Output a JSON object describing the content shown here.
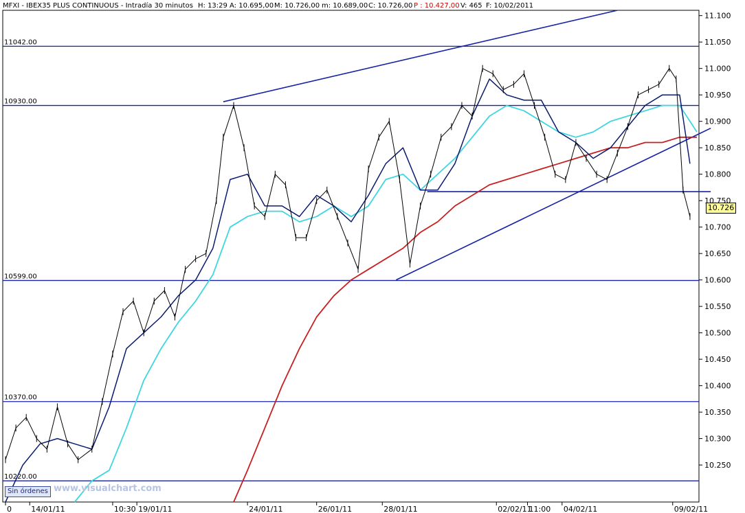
{
  "header": {
    "prefix": "MFXI - IBEX35 PLUS CONTINUOUS - Intradía 30 minutos",
    "high": "H: 13:29",
    "a": "A: 10.695,00",
    "m": "M: 10.726,00",
    "lo": "m: 10.689,00",
    "c": "C: 10.726,00",
    "p": "P : 10.427,00",
    "v": "V: 465",
    "f": "F: 10/02/2011"
  },
  "colors": {
    "price": "#000000",
    "ma_short": "#0a1a6e",
    "ma_medium": "#3fd6e0",
    "ma_long": "#c81e1e",
    "lines": "#1522a6",
    "p_text": "#cc0000"
  },
  "widgets": {
    "sin_ordenes": "Sin órdenes",
    "watermark": "www.visualchart.com",
    "last_price": "10.726"
  },
  "chart_data": {
    "type": "line",
    "ylim": [
      10180,
      11110
    ],
    "yticks": [
      "11.100",
      "11.050",
      "11.000",
      "10.950",
      "10.900",
      "10.850",
      "10.800",
      "10.750",
      "10.700",
      "10.650",
      "10.600",
      "10.550",
      "10.500",
      "10.450",
      "10.400",
      "10.350",
      "10.300",
      "10.250"
    ],
    "x_labels": [
      {
        "x": 0,
        "label": "0"
      },
      {
        "x": 7,
        "label": "14/01/11"
      },
      {
        "x": 31,
        "label": "10:30"
      },
      {
        "x": 38,
        "label": "19/01/11"
      },
      {
        "x": 70,
        "label": "24/01/11"
      },
      {
        "x": 90,
        "label": "26/01/11"
      },
      {
        "x": 109,
        "label": "28/01/11"
      },
      {
        "x": 142,
        "label": "02/02/11"
      },
      {
        "x": 151,
        "label": "11:00"
      },
      {
        "x": 161,
        "label": "04/02/11"
      },
      {
        "x": 193,
        "label": "09/02/11"
      }
    ],
    "levels": [
      {
        "value": 11042,
        "label": "11042.00"
      },
      {
        "value": 10930,
        "label": "10930.00"
      },
      {
        "value": 10599,
        "label": "10599.00"
      },
      {
        "value": 10370,
        "label": "10370.00"
      },
      {
        "value": 10220,
        "label": "10220.00"
      }
    ],
    "segments": [
      {
        "x": [
          122,
          204
        ],
        "y": [
          10767,
          10767
        ]
      },
      {
        "x": [
          63,
          177
        ],
        "y": [
          10937,
          11110
        ]
      },
      {
        "x": [
          113,
          204
        ],
        "y": [
          10600,
          10887
        ]
      }
    ],
    "price": {
      "x": [
        0,
        3,
        6,
        9,
        12,
        15,
        18,
        21,
        25,
        28,
        31,
        34,
        37,
        40,
        43,
        46,
        49,
        52,
        55,
        58,
        61,
        63,
        66,
        69,
        72,
        75,
        78,
        81,
        84,
        87,
        90,
        93,
        96,
        99,
        102,
        105,
        108,
        111,
        114,
        117,
        120,
        123,
        126,
        129,
        132,
        135,
        138,
        141,
        144,
        147,
        150,
        153,
        156,
        159,
        162,
        165,
        168,
        171,
        174,
        177,
        180,
        183,
        186,
        189,
        192,
        194,
        196,
        198
      ],
      "y": [
        10260,
        10320,
        10340,
        10300,
        10280,
        10360,
        10290,
        10260,
        10280,
        10370,
        10460,
        10540,
        10560,
        10500,
        10560,
        10580,
        10530,
        10620,
        10640,
        10650,
        10750,
        10870,
        10930,
        10850,
        10740,
        10720,
        10800,
        10780,
        10680,
        10680,
        10750,
        10770,
        10720,
        10670,
        10620,
        10810,
        10870,
        10900,
        10790,
        10630,
        10740,
        10800,
        10870,
        10890,
        10930,
        10910,
        11000,
        10990,
        10960,
        10970,
        10990,
        10930,
        10870,
        10800,
        10790,
        10860,
        10830,
        10800,
        10790,
        10840,
        10890,
        10950,
        10960,
        10970,
        11000,
        10980,
        10770,
        10720
      ]
    },
    "ma_short": {
      "x": [
        0,
        5,
        10,
        15,
        20,
        25,
        30,
        35,
        40,
        45,
        50,
        55,
        60,
        65,
        70,
        75,
        80,
        85,
        90,
        95,
        100,
        105,
        110,
        115,
        120,
        125,
        130,
        135,
        140,
        145,
        150,
        155,
        160,
        165,
        170,
        175,
        180,
        185,
        190,
        195,
        198
      ],
      "y": [
        10180,
        10250,
        10290,
        10300,
        10290,
        10280,
        10360,
        10470,
        10500,
        10530,
        10570,
        10600,
        10660,
        10790,
        10800,
        10740,
        10740,
        10720,
        10760,
        10740,
        10710,
        10760,
        10820,
        10850,
        10770,
        10770,
        10820,
        10910,
        10980,
        10950,
        10940,
        10940,
        10880,
        10860,
        10830,
        10850,
        10890,
        10930,
        10950,
        10950,
        10820
      ]
    },
    "ma_medium": {
      "x": [
        20,
        25,
        30,
        35,
        40,
        45,
        50,
        55,
        60,
        65,
        70,
        75,
        80,
        85,
        90,
        95,
        100,
        105,
        110,
        115,
        120,
        125,
        130,
        135,
        140,
        145,
        150,
        155,
        160,
        165,
        170,
        175,
        180,
        185,
        190,
        195,
        200
      ],
      "y": [
        10180,
        10220,
        10240,
        10320,
        10410,
        10470,
        10520,
        10560,
        10610,
        10700,
        10720,
        10730,
        10730,
        10710,
        10720,
        10740,
        10720,
        10740,
        10790,
        10800,
        10770,
        10800,
        10830,
        10870,
        10910,
        10930,
        10920,
        10900,
        10880,
        10870,
        10880,
        10900,
        10910,
        10920,
        10930,
        10930,
        10880
      ]
    },
    "ma_long": {
      "x": [
        66,
        70,
        75,
        80,
        85,
        90,
        95,
        100,
        105,
        110,
        115,
        120,
        125,
        130,
        135,
        140,
        145,
        150,
        155,
        160,
        165,
        170,
        175,
        180,
        185,
        190,
        195,
        200
      ],
      "y": [
        10180,
        10240,
        10320,
        10400,
        10470,
        10530,
        10570,
        10600,
        10620,
        10640,
        10660,
        10690,
        10710,
        10740,
        10760,
        10780,
        10790,
        10800,
        10810,
        10820,
        10830,
        10840,
        10850,
        10850,
        10860,
        10860,
        10870,
        10870
      ]
    }
  }
}
